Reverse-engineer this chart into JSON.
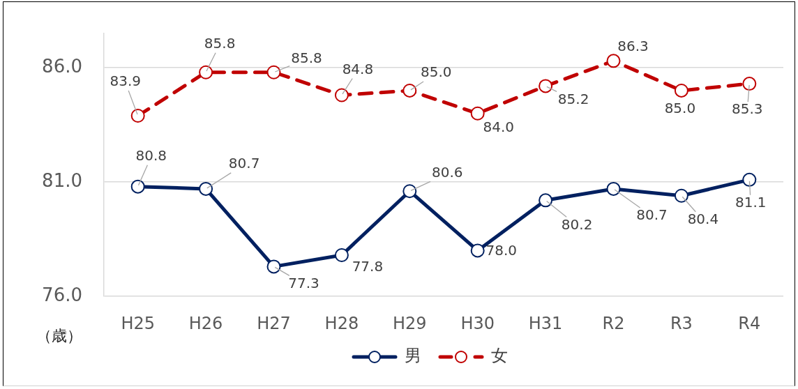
{
  "chart_data": {
    "type": "line",
    "ylabel": "（歳）",
    "categories": [
      "H25",
      "H26",
      "H27",
      "H28",
      "H29",
      "H30",
      "H31",
      "R2",
      "R3",
      "R4"
    ],
    "series": [
      {
        "name": "男",
        "color": "#002060",
        "line_style": "solid",
        "values": [
          80.8,
          80.7,
          77.3,
          77.8,
          80.6,
          78.0,
          80.2,
          80.7,
          80.4,
          81.1
        ],
        "value_labels": [
          "80.8",
          "80.7",
          "77.3",
          "77.8",
          "80.6",
          "78.0",
          "80.2",
          "80.7",
          "80.4",
          "81.1"
        ]
      },
      {
        "name": "女",
        "color": "#c00000",
        "line_style": "dashed",
        "values": [
          83.9,
          85.8,
          85.8,
          84.8,
          85.0,
          84.0,
          85.2,
          86.3,
          85.0,
          85.3
        ],
        "value_labels": [
          "83.9",
          "85.8",
          "85.8",
          "84.8",
          "85.0",
          "84.0",
          "85.2",
          "86.3",
          "85.0",
          "85.3"
        ]
      }
    ],
    "ylim": [
      76,
      87.5
    ],
    "yticks": [
      {
        "value": 76,
        "label": "76.0"
      },
      {
        "value": 81,
        "label": "81.0"
      },
      {
        "value": 86,
        "label": "86.0"
      }
    ],
    "grid": "y",
    "legend": "bottom",
    "marker": "circle"
  }
}
